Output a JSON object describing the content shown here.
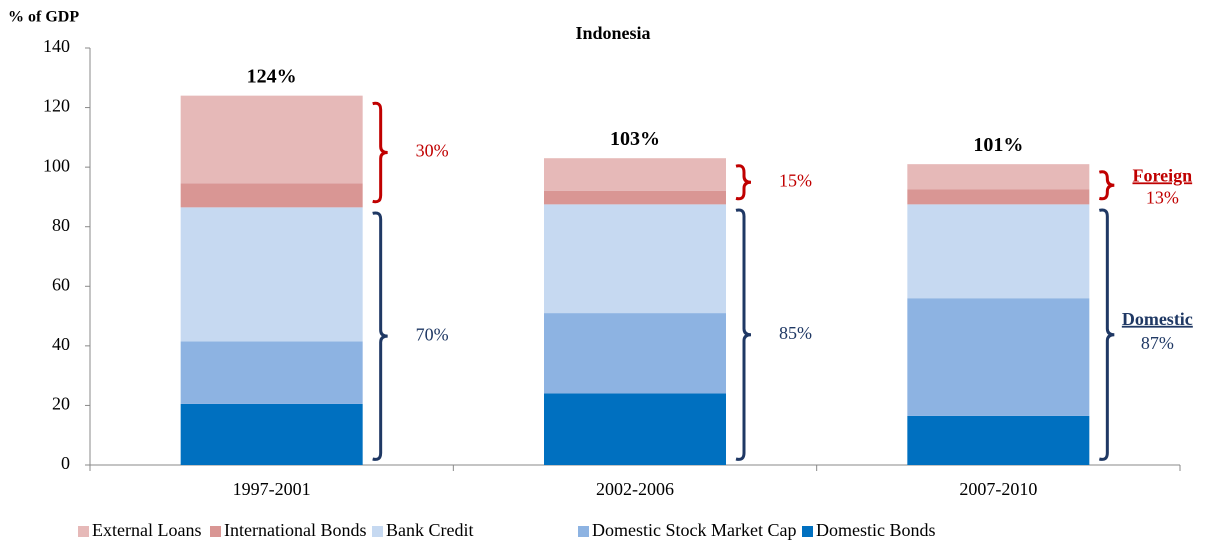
{
  "chart_data": {
    "type": "stacked_bar",
    "title": "Indonesia",
    "y_label": "% of GDP",
    "categories": [
      "1997-2001",
      "2002-2006",
      "2007-2010"
    ],
    "series": [
      {
        "name": "External Loans",
        "color": "#e6b9b8",
        "values": [
          29.5,
          11,
          8.5
        ]
      },
      {
        "name": "International Bonds",
        "color": "#d99694",
        "values": [
          8,
          4.5,
          5
        ]
      },
      {
        "name": "Bank Credit",
        "color": "#c6d9f1",
        "values": [
          45,
          36.5,
          31.5
        ]
      },
      {
        "name": "Domestic Stock Market Cap",
        "color": "#8db3e2",
        "values": [
          21,
          27,
          39.5
        ]
      },
      {
        "name": "Domestic Bonds",
        "color": "#0070c0",
        "values": [
          20.5,
          24,
          16.5
        ]
      }
    ],
    "totals": [
      124,
      103,
      101
    ],
    "total_labels": [
      "124%",
      "103%",
      "101%"
    ],
    "foreign": {
      "name": "Foreign",
      "color": "#c00000",
      "labels": [
        "30%",
        "15%",
        "13%"
      ]
    },
    "domestic": {
      "name": "Domestic",
      "color": "#1f3864",
      "labels": [
        "70%",
        "85%",
        "87%"
      ]
    },
    "ylim": [
      0,
      140
    ],
    "yticks": [
      0,
      20,
      40,
      60,
      80,
      100,
      120,
      140
    ]
  }
}
